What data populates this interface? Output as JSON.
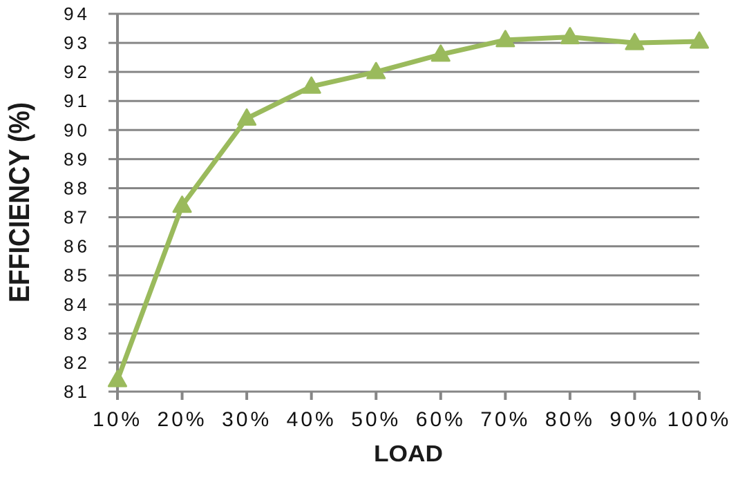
{
  "chart_data": {
    "type": "line",
    "title": "",
    "xlabel": "LOAD",
    "ylabel": "EFFICIENCY (%)",
    "categories": [
      "10%",
      "20%",
      "30%",
      "40%",
      "50%",
      "60%",
      "70%",
      "80%",
      "90%",
      "100%"
    ],
    "series": [
      {
        "name": "Efficiency",
        "values": [
          81.4,
          87.4,
          90.4,
          91.5,
          92.0,
          92.6,
          93.1,
          93.2,
          93.0,
          93.05
        ]
      }
    ],
    "ylim": [
      81,
      94
    ],
    "y_ticks": [
      81,
      82,
      83,
      84,
      85,
      86,
      87,
      88,
      89,
      90,
      91,
      92,
      93,
      94
    ],
    "grid": "horizontal",
    "legend": "none",
    "marker": "triangle",
    "colors": {
      "series": "#9aba5c",
      "gridline": "#868686",
      "axis": "#868686",
      "tick_text": "#111111",
      "axis_title_text": "#1a1a1a",
      "background": "#ffffff"
    }
  }
}
